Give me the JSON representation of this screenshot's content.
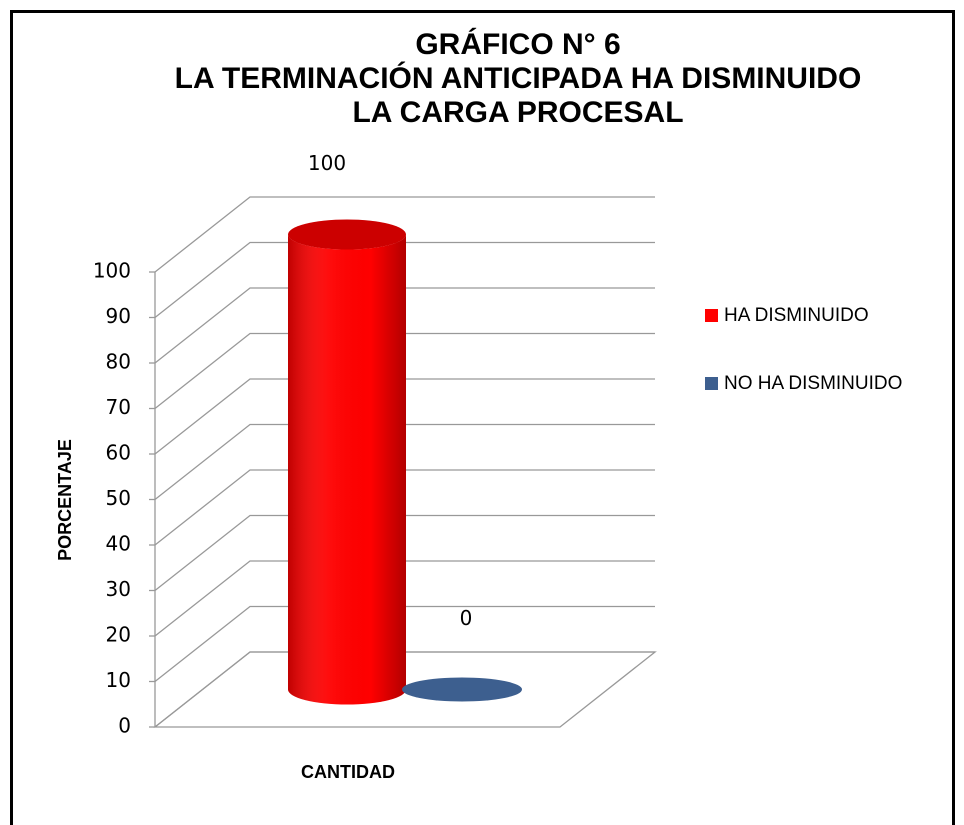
{
  "chart_data": {
    "type": "bar3d",
    "title": [
      "GRÁFICO N° 6",
      "LA TERMINACIÓN ANTICIPADA HA DISMINUIDO",
      "LA CARGA PROCESAL"
    ],
    "ylabel": "PORCENTAJE",
    "xlabel": "CANTIDAD",
    "categories": [
      null
    ],
    "series": [
      {
        "name": "HA DISMINUIDO",
        "color": "#ff0000",
        "values": [
          100
        ]
      },
      {
        "name": "NO HA DISMINUIDO",
        "color": "#3d5f8f",
        "values": [
          0
        ]
      }
    ],
    "ylim": [
      0,
      100
    ],
    "yticks": [
      0,
      10,
      20,
      30,
      40,
      50,
      60,
      70,
      80,
      90,
      100
    ],
    "grid": true,
    "legend": "right"
  }
}
